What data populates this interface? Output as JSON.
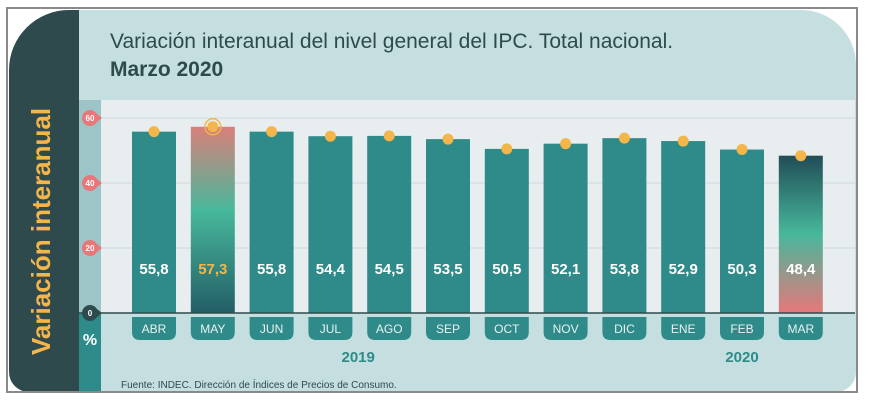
{
  "side_label": "Variación interanual",
  "title_line1": "Variación interanual del nivel general del IPC. Total nacional.",
  "title_line2": "Marzo 2020",
  "source": "Fuente: INDEC. Dirección de Índices de Precios de Consumo.",
  "colors": {
    "bar": "#2e8b8a",
    "dark": "#2f4a4d",
    "dot": "#f4b54a",
    "pink": "#e8777a",
    "plot_bg": "#e8eef0",
    "panel": "#c5dfe0"
  },
  "chart_data": {
    "type": "bar",
    "title": "Variación interanual del nivel general del IPC. Total nacional. Marzo 2020",
    "ylabel": "%",
    "ylim": [
      0,
      60
    ],
    "yticks": [
      "0",
      "20",
      "40",
      "60"
    ],
    "categories": [
      "ABR",
      "MAY",
      "JUN",
      "JUL",
      "AGO",
      "SEP",
      "OCT",
      "NOV",
      "DIC",
      "ENE",
      "FEB",
      "MAR"
    ],
    "values": [
      55.8,
      57.3,
      55.8,
      54.4,
      54.5,
      53.5,
      50.5,
      52.1,
      53.8,
      52.9,
      50.3,
      48.4
    ],
    "value_labels": [
      "55,8",
      "57,3",
      "55,8",
      "54,4",
      "54,5",
      "53,5",
      "50,5",
      "52,1",
      "53,8",
      "52,9",
      "50,3",
      "48,4"
    ],
    "highlight": {
      "max": "MAY",
      "latest": "MAR"
    },
    "years": [
      {
        "label": "2019",
        "start": 0,
        "end": 8
      },
      {
        "label": "2020",
        "start": 9,
        "end": 11
      }
    ],
    "grid": true
  }
}
